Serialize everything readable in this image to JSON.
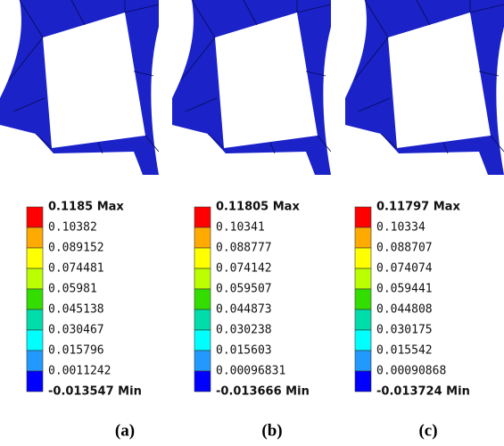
{
  "legend_colors": [
    "#ff0000",
    "#ffaa00",
    "#ffff00",
    "#bbff00",
    "#33dd00",
    "#00ddaa",
    "#00ffff",
    "#2299ff",
    "#0000ff"
  ],
  "panels": [
    {
      "caption": "(a)",
      "legend": [
        "0.1185 Max",
        "0.10382",
        "0.089152",
        "0.074481",
        "0.05981",
        "0.045138",
        "0.030467",
        "0.015796",
        "0.0011242",
        "-0.013547 Min"
      ]
    },
    {
      "caption": "(b)",
      "legend": [
        "0.11805 Max",
        "0.10341",
        "0.088777",
        "0.074142",
        "0.059507",
        "0.044873",
        "0.030238",
        "0.015603",
        "0.00096831",
        "-0.013666 Min"
      ]
    },
    {
      "caption": "(c)",
      "legend": [
        "0.11797 Max",
        "0.10334",
        "0.088707",
        "0.074074",
        "0.059441",
        "0.044808",
        "0.030175",
        "0.015542",
        "0.00090868",
        "-0.013724 Min"
      ]
    }
  ]
}
